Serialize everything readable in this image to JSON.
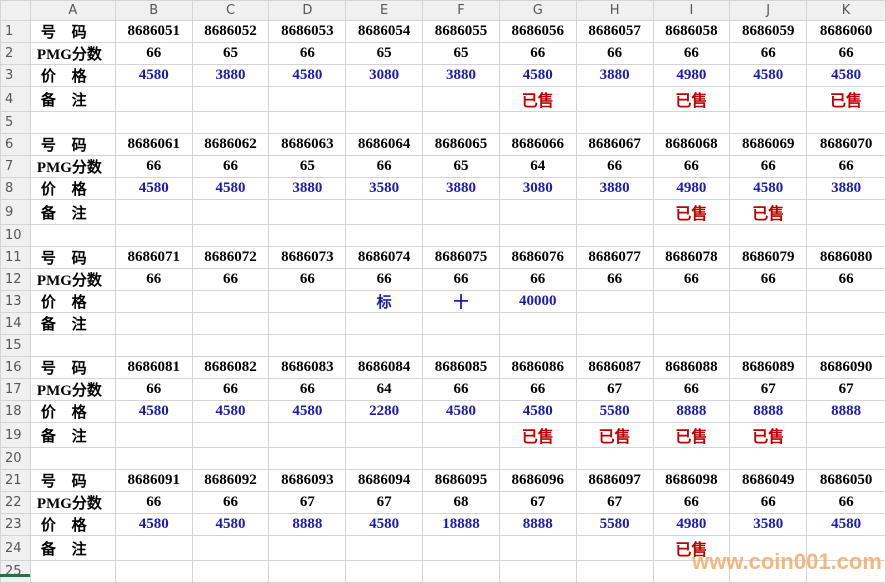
{
  "columns": [
    "A",
    "B",
    "C",
    "D",
    "E",
    "F",
    "G",
    "H",
    "I",
    "J",
    "K"
  ],
  "rows": [
    {
      "n": "1",
      "type": "num",
      "cells": [
        "号 码",
        "8686051",
        "8686052",
        "8686053",
        "8686054",
        "8686055",
        "8686056",
        "8686057",
        "8686058",
        "8686059",
        "8686060"
      ]
    },
    {
      "n": "2",
      "type": "score",
      "cells": [
        "PMG分数",
        "66",
        "65",
        "66",
        "65",
        "65",
        "66",
        "66",
        "66",
        "66",
        "66"
      ]
    },
    {
      "n": "3",
      "type": "price",
      "cells": [
        "价 格",
        "4580",
        "3880",
        "4580",
        "3080",
        "3880",
        "4580",
        "3880",
        "4980",
        "4580",
        "4580"
      ]
    },
    {
      "n": "4",
      "type": "remark",
      "cells": [
        "备 注",
        "",
        "",
        "",
        "",
        "",
        "已售",
        "",
        "已售",
        "",
        "已售"
      ]
    },
    {
      "n": "5",
      "type": "blank",
      "cells": [
        "",
        "",
        "",
        "",
        "",
        "",
        "",
        "",
        "",
        "",
        ""
      ]
    },
    {
      "n": "6",
      "type": "num",
      "cells": [
        "号 码",
        "8686061",
        "8686062",
        "8686063",
        "8686064",
        "8686065",
        "8686066",
        "8686067",
        "8686068",
        "8686069",
        "8686070"
      ]
    },
    {
      "n": "7",
      "type": "score",
      "cells": [
        "PMG分数",
        "66",
        "66",
        "65",
        "66",
        "65",
        "64",
        "66",
        "66",
        "66",
        "66"
      ]
    },
    {
      "n": "8",
      "type": "price",
      "cells": [
        "价 格",
        "4580",
        "4580",
        "3880",
        "3580",
        "3880",
        "3080",
        "3880",
        "4980",
        "4580",
        "3880"
      ]
    },
    {
      "n": "9",
      "type": "remark",
      "cells": [
        "备 注",
        "",
        "",
        "",
        "",
        "",
        "",
        "",
        "已售",
        "已售",
        ""
      ]
    },
    {
      "n": "10",
      "type": "blank",
      "cells": [
        "",
        "",
        "",
        "",
        "",
        "",
        "",
        "",
        "",
        "",
        ""
      ]
    },
    {
      "n": "11",
      "type": "num",
      "cells": [
        "号 码",
        "8686071",
        "8686072",
        "8686073",
        "8686074",
        "8686075",
        "8686076",
        "8686077",
        "8686078",
        "8686079",
        "8686080"
      ]
    },
    {
      "n": "12",
      "type": "score",
      "cells": [
        "PMG分数",
        "66",
        "66",
        "66",
        "66",
        "66",
        "66",
        "66",
        "66",
        "66",
        "66"
      ]
    },
    {
      "n": "13",
      "type": "price",
      "cells": [
        "价 格",
        "",
        "",
        "",
        "标",
        "十",
        "40000",
        "",
        "",
        "",
        ""
      ]
    },
    {
      "n": "14",
      "type": "remark",
      "cells": [
        "备 注",
        "",
        "",
        "",
        "",
        "",
        "",
        "",
        "",
        "",
        ""
      ]
    },
    {
      "n": "15",
      "type": "blank",
      "cells": [
        "",
        "",
        "",
        "",
        "",
        "",
        "",
        "",
        "",
        "",
        ""
      ]
    },
    {
      "n": "16",
      "type": "num",
      "cells": [
        "号 码",
        "8686081",
        "8686082",
        "8686083",
        "8686084",
        "8686085",
        "8686086",
        "8686087",
        "8686088",
        "8686089",
        "8686090"
      ]
    },
    {
      "n": "17",
      "type": "score",
      "cells": [
        "PMG分数",
        "66",
        "66",
        "66",
        "64",
        "66",
        "66",
        "67",
        "66",
        "67",
        "67"
      ]
    },
    {
      "n": "18",
      "type": "price",
      "cells": [
        "价 格",
        "4580",
        "4580",
        "4580",
        "2280",
        "4580",
        "4580",
        "5580",
        "8888",
        "8888",
        "8888"
      ]
    },
    {
      "n": "19",
      "type": "remark",
      "cells": [
        "备 注",
        "",
        "",
        "",
        "",
        "",
        "已售",
        "已售",
        "已售",
        "已售",
        ""
      ]
    },
    {
      "n": "20",
      "type": "blank",
      "cells": [
        "",
        "",
        "",
        "",
        "",
        "",
        "",
        "",
        "",
        "",
        ""
      ]
    },
    {
      "n": "21",
      "type": "num",
      "cells": [
        "号 码",
        "8686091",
        "8686092",
        "8686093",
        "8686094",
        "8686095",
        "8686096",
        "8686097",
        "8686098",
        "8686049",
        "8686050"
      ]
    },
    {
      "n": "22",
      "type": "score",
      "cells": [
        "PMG分数",
        "66",
        "66",
        "67",
        "67",
        "68",
        "67",
        "67",
        "66",
        "66",
        "66"
      ]
    },
    {
      "n": "23",
      "type": "price",
      "cells": [
        "价 格",
        "4580",
        "4580",
        "8888",
        "4580",
        "18888",
        "8888",
        "5580",
        "4980",
        "3580",
        "4580"
      ]
    },
    {
      "n": "24",
      "type": "remark",
      "cells": [
        "备 注",
        "",
        "",
        "",
        "",
        "",
        "",
        "",
        "已售",
        "",
        ""
      ]
    },
    {
      "n": "25",
      "type": "blank",
      "cells": [
        "",
        "",
        "",
        "",
        "",
        "",
        "",
        "",
        "",
        "",
        ""
      ]
    }
  ],
  "watermark": "www.coin001.com",
  "colors": {
    "price": "#1a1ab4",
    "sold": "#c00000",
    "watermark": "#f3b072"
  }
}
